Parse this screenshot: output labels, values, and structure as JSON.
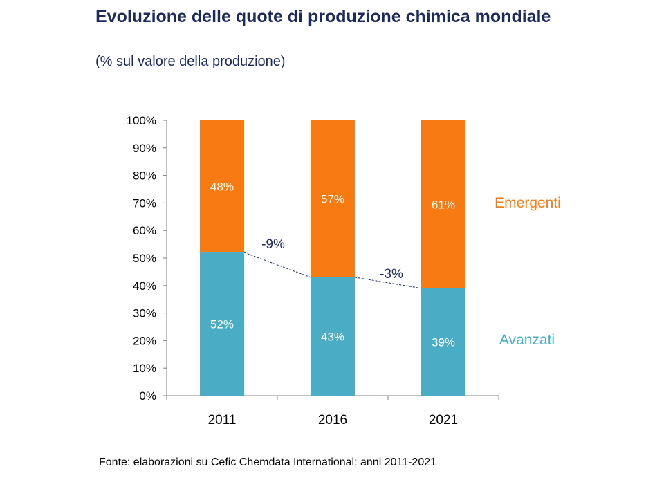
{
  "header": {
    "title": "Evoluzione delle quote di produzione chimica mondiale",
    "subtitle": "(% sul valore della produzione)"
  },
  "footer": {
    "source": "Fonte: elaborazioni su Cefic Chemdata International; anni 2011-2021"
  },
  "chart_data": {
    "type": "bar",
    "stacked": true,
    "title": "Evoluzione delle quote di produzione chimica mondiale",
    "subtitle": "(% sul valore della produzione)",
    "categories": [
      "2011",
      "2016",
      "2021"
    ],
    "series": [
      {
        "name": "Avanzati",
        "values": [
          52,
          43,
          39
        ],
        "labels": [
          "52%",
          "43%",
          "39%"
        ],
        "color": "#4bacc6"
      },
      {
        "name": "Emergenti",
        "values": [
          48,
          57,
          61
        ],
        "labels": [
          "48%",
          "57%",
          "61%"
        ],
        "color": "#f77b12"
      }
    ],
    "y_ticks": [
      "0%",
      "10%",
      "20%",
      "30%",
      "40%",
      "50%",
      "60%",
      "70%",
      "80%",
      "90%",
      "100%"
    ],
    "ylim": [
      0,
      100
    ],
    "annotations": [
      "-9%",
      "-3%"
    ],
    "legend_position": "right",
    "grid": false
  }
}
